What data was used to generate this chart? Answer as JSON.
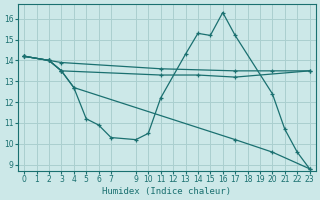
{
  "xlabel": "Humidex (Indice chaleur)",
  "background_color": "#cce8e8",
  "grid_color": "#aacfcf",
  "line_color": "#1a7070",
  "xlim": [
    -0.5,
    23.5
  ],
  "ylim": [
    8.7,
    16.7
  ],
  "yticks": [
    9,
    10,
    11,
    12,
    13,
    14,
    15,
    16
  ],
  "xticks": [
    0,
    1,
    2,
    3,
    4,
    5,
    6,
    7,
    9,
    10,
    11,
    12,
    13,
    14,
    15,
    16,
    17,
    18,
    19,
    20,
    21,
    22,
    23
  ],
  "lines": [
    {
      "x": [
        0,
        2,
        3,
        4,
        5,
        6,
        7,
        9,
        10,
        11,
        13,
        14,
        15,
        16,
        17,
        20,
        21,
        22,
        23
      ],
      "y": [
        14.2,
        14.0,
        13.5,
        12.7,
        11.2,
        10.9,
        10.3,
        10.2,
        10.5,
        12.2,
        14.3,
        15.3,
        15.2,
        16.3,
        15.2,
        12.4,
        10.7,
        9.6,
        8.8
      ]
    },
    {
      "x": [
        0,
        2,
        3,
        11,
        17,
        20,
        23
      ],
      "y": [
        14.2,
        14.0,
        13.9,
        13.6,
        13.5,
        13.5,
        13.5
      ]
    },
    {
      "x": [
        0,
        2,
        3,
        11,
        14,
        17,
        23
      ],
      "y": [
        14.2,
        14.0,
        13.5,
        13.3,
        13.3,
        13.2,
        13.5
      ]
    },
    {
      "x": [
        0,
        2,
        3,
        4,
        17,
        20,
        23
      ],
      "y": [
        14.2,
        14.0,
        13.5,
        12.7,
        10.2,
        9.6,
        8.8
      ]
    }
  ]
}
